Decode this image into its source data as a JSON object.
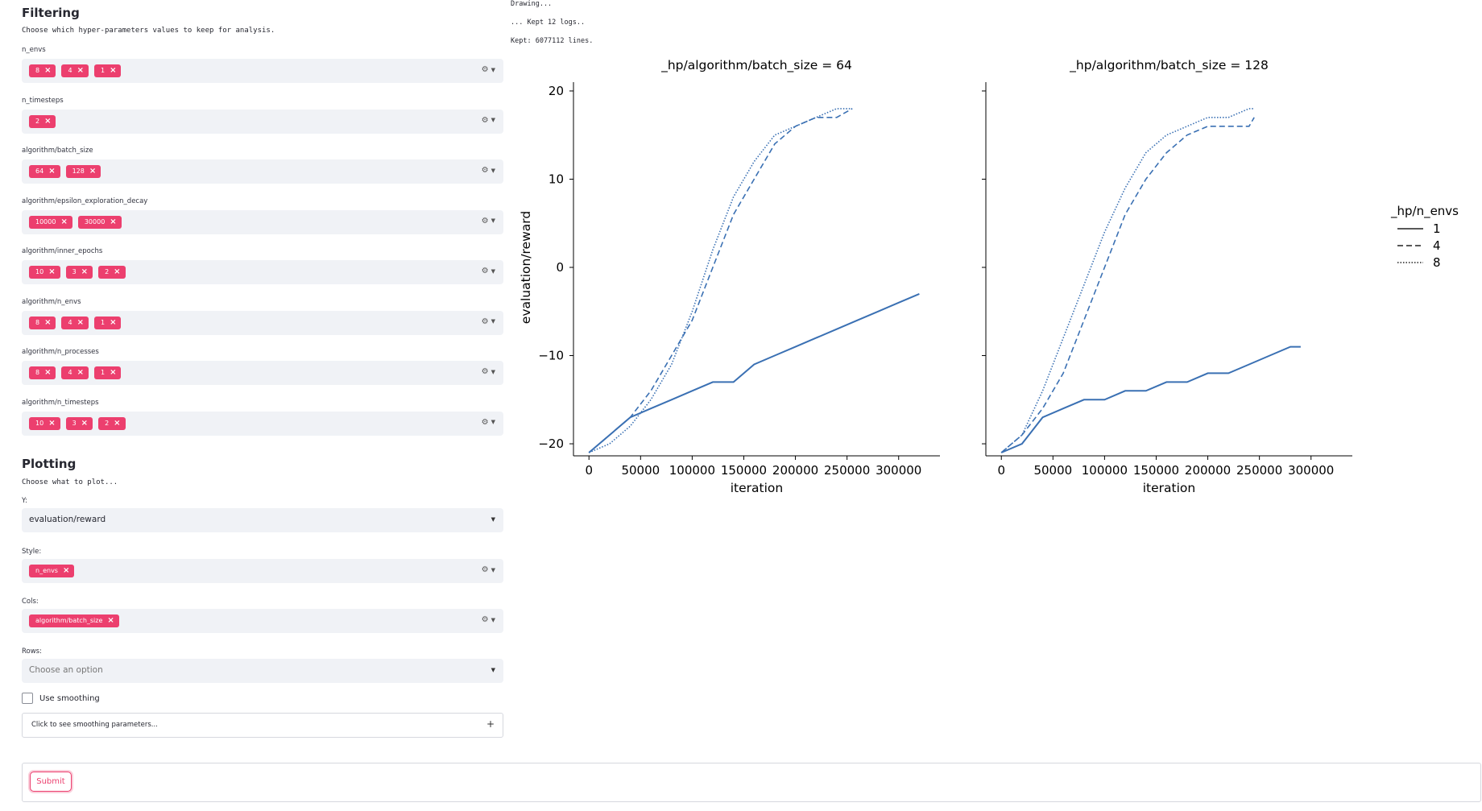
{
  "filtering": {
    "title": "Filtering",
    "description": "Choose which hyper-parameters values to keep for analysis.",
    "fields": [
      {
        "label": "n_envs",
        "chips": [
          "8",
          "4",
          "1"
        ]
      },
      {
        "label": "n_timesteps",
        "chips": [
          "2"
        ]
      },
      {
        "label": "algorithm/batch_size",
        "chips": [
          "64",
          "128"
        ]
      },
      {
        "label": "algorithm/epsilon_exploration_decay",
        "chips": [
          "10000",
          "30000"
        ]
      },
      {
        "label": "algorithm/inner_epochs",
        "chips": [
          "10",
          "3",
          "2"
        ]
      },
      {
        "label": "algorithm/n_envs",
        "chips": [
          "8",
          "4",
          "1"
        ]
      },
      {
        "label": "algorithm/n_processes",
        "chips": [
          "8",
          "4",
          "1"
        ]
      },
      {
        "label": "algorithm/n_timesteps",
        "chips": [
          "10",
          "3",
          "2"
        ]
      }
    ]
  },
  "plotting": {
    "title": "Plotting",
    "description": "Choose what to plot...",
    "y_label": "Y:",
    "y_value": "evaluation/reward",
    "style_label": "Style:",
    "style_chips": [
      "n_envs"
    ],
    "cols_label": "Cols:",
    "cols_chips": [
      "algorithm/batch_size"
    ],
    "rows_label": "Rows:",
    "rows_placeholder": "Choose an option",
    "smoothing_label": "Use smoothing",
    "smoothing_expander": "Click to see smoothing parameters...",
    "submit_label": "Submit"
  },
  "log": {
    "line1": "Drawing...",
    "line2": "... Kept 12 logs..",
    "line3": "Kept: 6077112 lines."
  },
  "icons": {
    "chip_remove": "close-icon",
    "settings": "gear-icon",
    "dropdown": "chevron-down-icon",
    "expand": "plus-icon"
  },
  "colors": {
    "chip": "#ec3f6e",
    "input_bg": "#f0f2f6",
    "line": "#3a70b3"
  },
  "chart_data": {
    "type": "line",
    "ylabel": "evaluation/reward",
    "xlabel": "iteration",
    "ylim": [
      -21,
      21
    ],
    "yticks": [
      -20,
      -10,
      0,
      10,
      20
    ],
    "xticks": [
      0,
      50000,
      100000,
      150000,
      200000,
      250000,
      300000
    ],
    "legend": {
      "title": "_hp/n_envs",
      "entries": [
        "1",
        "4",
        "8"
      ],
      "styles": [
        "solid",
        "dashed",
        "dotted"
      ],
      "placement": "right"
    },
    "panels": [
      {
        "title": "_hp/algorithm/batch_size = 64",
        "xlim": [
          -15000,
          340000
        ],
        "series": [
          {
            "name": "1",
            "style": "solid",
            "x": [
              0,
              20000,
              40000,
              60000,
              80000,
              100000,
              120000,
              140000,
              160000,
              180000,
              200000,
              220000,
              240000,
              260000,
              280000,
              300000,
              320000
            ],
            "y": [
              -21,
              -19,
              -17,
              -16,
              -15,
              -14,
              -13,
              -13,
              -11,
              -10,
              -9,
              -8,
              -7,
              -6,
              -5,
              -4,
              -3
            ]
          },
          {
            "name": "4",
            "style": "dashed",
            "x": [
              0,
              20000,
              40000,
              60000,
              80000,
              100000,
              120000,
              140000,
              160000,
              180000,
              200000,
              220000,
              240000,
              255000
            ],
            "y": [
              -21,
              -19,
              -17,
              -14,
              -10,
              -6,
              0,
              6,
              10,
              14,
              16,
              17,
              17,
              18
            ]
          },
          {
            "name": "8",
            "style": "dotted",
            "x": [
              0,
              20000,
              40000,
              60000,
              80000,
              100000,
              120000,
              140000,
              160000,
              180000,
              200000,
              220000,
              240000,
              255000
            ],
            "y": [
              -21,
              -20,
              -18,
              -15,
              -11,
              -5,
              2,
              8,
              12,
              15,
              16,
              17,
              18,
              18
            ]
          }
        ]
      },
      {
        "title": "_hp/algorithm/batch_size = 128",
        "xlim": [
          -15000,
          340000
        ],
        "series": [
          {
            "name": "1",
            "style": "solid",
            "x": [
              0,
              20000,
              40000,
              60000,
              80000,
              100000,
              120000,
              140000,
              160000,
              180000,
              200000,
              220000,
              240000,
              260000,
              280000,
              290000
            ],
            "y": [
              -21,
              -20,
              -17,
              -16,
              -15,
              -15,
              -14,
              -14,
              -13,
              -13,
              -12,
              -12,
              -11,
              -10,
              -9,
              -9
            ]
          },
          {
            "name": "4",
            "style": "dashed",
            "x": [
              0,
              20000,
              40000,
              60000,
              80000,
              100000,
              120000,
              140000,
              160000,
              180000,
              200000,
              220000,
              240000,
              245000
            ],
            "y": [
              -21,
              -19,
              -16,
              -12,
              -6,
              0,
              6,
              10,
              13,
              15,
              16,
              16,
              16,
              17
            ]
          },
          {
            "name": "8",
            "style": "dotted",
            "x": [
              0,
              20000,
              40000,
              60000,
              80000,
              100000,
              120000,
              140000,
              160000,
              180000,
              200000,
              220000,
              240000,
              245000
            ],
            "y": [
              -21,
              -19,
              -14,
              -8,
              -2,
              4,
              9,
              13,
              15,
              16,
              17,
              17,
              18,
              18
            ]
          }
        ]
      }
    ]
  }
}
